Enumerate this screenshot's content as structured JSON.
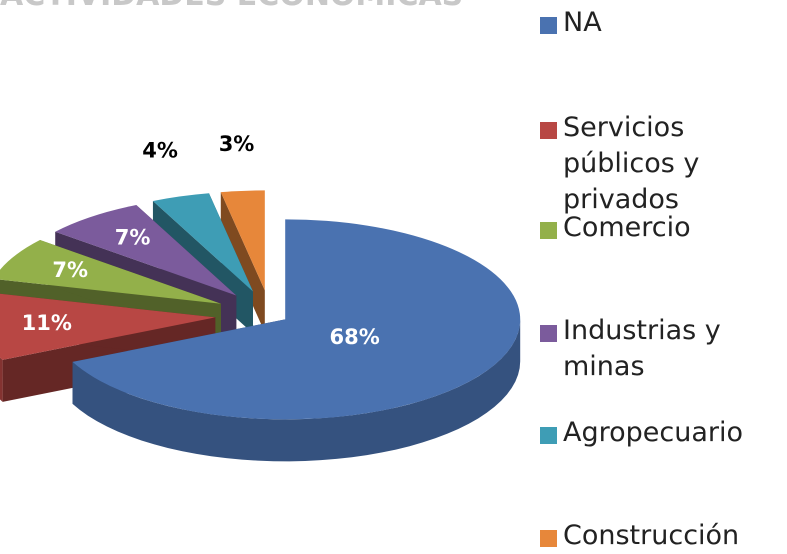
{
  "chart_data": {
    "type": "pie3d",
    "title": "ACTIVIDADES ECONÓMICAS",
    "categories": [
      "NA",
      "Servicios públicos y privados",
      "Comercio",
      "Industrias y minas",
      "Agropecuario",
      "Construcción"
    ],
    "values": [
      68,
      11,
      7,
      7,
      4,
      3
    ],
    "value_labels": [
      "68%",
      "11%",
      "7%",
      "7%",
      "4%",
      "3%"
    ],
    "colors": [
      "#4a72b0",
      "#b84744",
      "#93b04a",
      "#7b5b9c",
      "#3e9db5",
      "#e7873a"
    ],
    "legend": "right"
  }
}
